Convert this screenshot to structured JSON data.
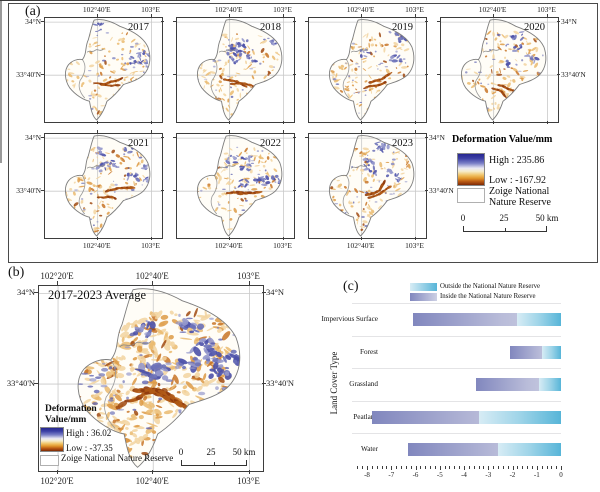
{
  "panel_a": {
    "label": "(a)",
    "years": [
      "2017",
      "2018",
      "2019",
      "2020",
      "2021",
      "2022",
      "2023"
    ],
    "lon_labels": [
      "102°40'E",
      "103°E"
    ],
    "lat_labels": [
      "34°N",
      "33°40'N"
    ],
    "legend": {
      "title": "Deformation Value/mm",
      "high_label": "High : 235.86",
      "low_label": "Low : -167.92",
      "reserve_label": "Zoige National Nature Reserve",
      "scale_labels": [
        "0",
        "25",
        "50 km"
      ]
    }
  },
  "panel_b": {
    "label": "(b)",
    "map_title": "2017-2023 Average",
    "lon_labels": [
      "102°20'E",
      "102°40'E",
      "103°E"
    ],
    "lat_labels": [
      "34°N",
      "33°40'N"
    ],
    "legend": {
      "title_line1": "Deformation",
      "title_line2": "Value/mm",
      "high_label": "High : 36.02",
      "low_label": "Low : -37.35",
      "reserve_label": "Zoige National Nature Reserve",
      "scale_labels": [
        "0",
        "25",
        "50 km"
      ]
    }
  },
  "panel_c": {
    "label": "(c)",
    "ylabel": "Land Cover Type"
  },
  "chart_data": {
    "type": "bar",
    "orientation": "horizontal",
    "title": "",
    "xlabel": "",
    "ylabel": "Land Cover Type",
    "categories": [
      "Impervious Surface",
      "Forest",
      "Grassland",
      "Peatland",
      "Water"
    ],
    "series": [
      {
        "name": "Outside the National Nature Reserve",
        "values": [
          -1.8,
          -0.8,
          -0.9,
          -3.4,
          -2.6
        ],
        "color_start": "#d7ecf5",
        "color_end": "#57b5d8"
      },
      {
        "name": "Inside the National Nature Reserve",
        "values": [
          -6.1,
          -2.1,
          -3.5,
          -7.8,
          -6.3
        ],
        "color_start": "#8187be",
        "color_end": "#cdd0e4"
      }
    ],
    "bar_layout": "both bars anchored at 0, inside-reserve bar drawn behind outside-reserve bar",
    "xlim": [
      -8.6,
      0
    ],
    "x_ticks": [
      -8,
      -7,
      -6,
      -5,
      -4,
      -3,
      -2,
      -1,
      0
    ],
    "minor_tick_step": 0.2,
    "legend_position": "top",
    "grid": "light category separator lines"
  },
  "colors": {
    "map_uplift_blue": "#4d51a8",
    "map_subsidence_orange": "#dd9a45",
    "map_subsidence_dark": "#8f3a0c",
    "colorbar_top_blue": "#26268f",
    "colorbar_bottom_red": "#7e2a06",
    "bar_outside_cyan": "#57b5d8",
    "bar_inside_purple": "#8187be",
    "graticule_gray": "#c9c9c9"
  }
}
